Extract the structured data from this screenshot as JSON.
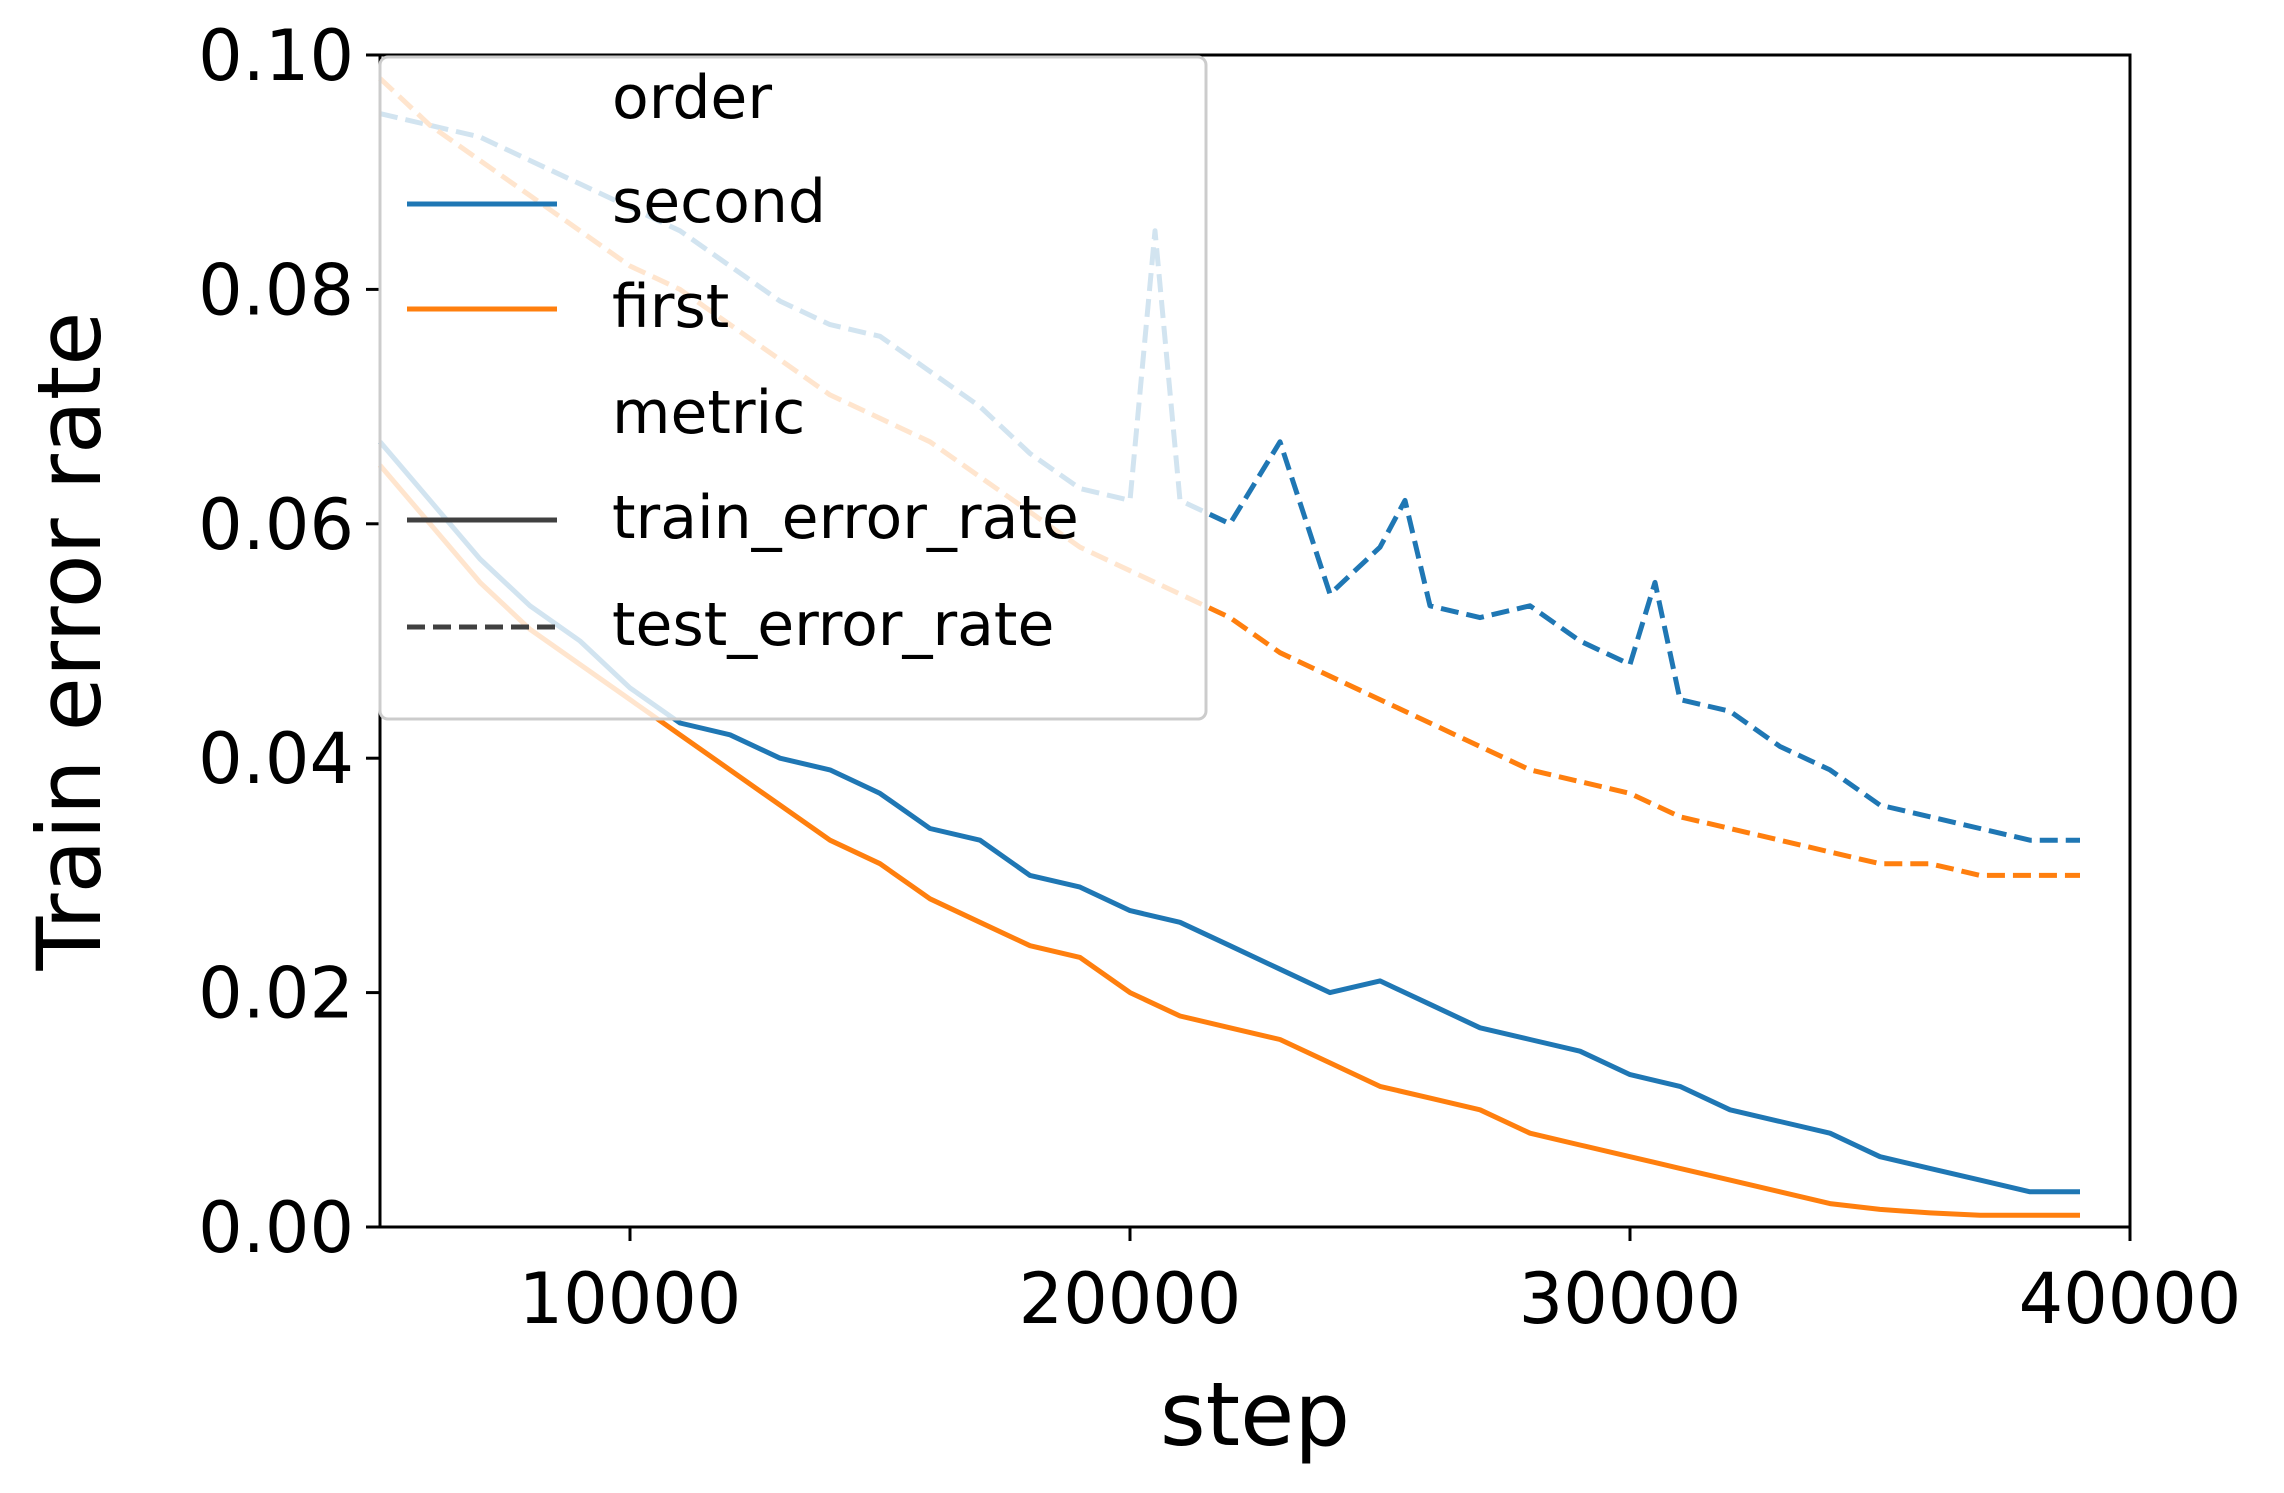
{
  "chart_data": {
    "type": "line",
    "title": "",
    "xlabel": "step",
    "ylabel": "Train error rate",
    "xlim": [
      5000,
      40000
    ],
    "ylim": [
      0.0,
      0.1
    ],
    "xticks": [
      "10000",
      "20000",
      "30000",
      "40000"
    ],
    "yticks": [
      "0.00",
      "0.02",
      "0.04",
      "0.06",
      "0.08",
      "0.10"
    ],
    "grid": false,
    "legend": {
      "placement": "upper-left",
      "entries": [
        {
          "label": "order",
          "kind": "header"
        },
        {
          "label": "second",
          "kind": "color",
          "color": "#1f77b4"
        },
        {
          "label": "first",
          "kind": "color",
          "color": "#ff7f0e"
        },
        {
          "label": "metric",
          "kind": "header"
        },
        {
          "label": "train_error_rate",
          "kind": "solid",
          "color": "#404040"
        },
        {
          "label": "test_error_rate",
          "kind": "dashed",
          "color": "#404040"
        }
      ]
    },
    "series": [
      {
        "name": "second",
        "metric": "train_error_rate",
        "color": "#1f77b4",
        "dash": false,
        "x": [
          5000,
          6000,
          7000,
          8000,
          9000,
          10000,
          11000,
          12000,
          13000,
          14000,
          15000,
          16000,
          17000,
          18000,
          19000,
          20000,
          21000,
          22000,
          23000,
          24000,
          25000,
          26000,
          27000,
          28000,
          29000,
          30000,
          31000,
          32000,
          33000,
          34000,
          35000,
          36000,
          37000,
          38000,
          39000
        ],
        "y": [
          0.067,
          0.062,
          0.057,
          0.053,
          0.05,
          0.046,
          0.043,
          0.042,
          0.04,
          0.039,
          0.037,
          0.034,
          0.033,
          0.03,
          0.029,
          0.027,
          0.026,
          0.024,
          0.022,
          0.02,
          0.021,
          0.019,
          0.017,
          0.016,
          0.015,
          0.013,
          0.012,
          0.01,
          0.009,
          0.008,
          0.006,
          0.005,
          0.004,
          0.003,
          0.003
        ]
      },
      {
        "name": "first",
        "metric": "train_error_rate",
        "color": "#ff7f0e",
        "dash": false,
        "x": [
          5000,
          6000,
          7000,
          8000,
          9000,
          10000,
          11000,
          12000,
          13000,
          14000,
          15000,
          16000,
          17000,
          18000,
          19000,
          20000,
          21000,
          22000,
          23000,
          24000,
          25000,
          26000,
          27000,
          28000,
          29000,
          30000,
          31000,
          32000,
          33000,
          34000,
          35000,
          36000,
          37000,
          38000,
          39000
        ],
        "y": [
          0.065,
          0.06,
          0.055,
          0.051,
          0.048,
          0.045,
          0.042,
          0.039,
          0.036,
          0.033,
          0.031,
          0.028,
          0.026,
          0.024,
          0.023,
          0.02,
          0.018,
          0.017,
          0.016,
          0.014,
          0.012,
          0.011,
          0.01,
          0.008,
          0.007,
          0.006,
          0.005,
          0.004,
          0.003,
          0.002,
          0.0015,
          0.0012,
          0.001,
          0.001,
          0.001
        ]
      },
      {
        "name": "second",
        "metric": "test_error_rate",
        "color": "#1f77b4",
        "dash": true,
        "x": [
          5000,
          6000,
          7000,
          8000,
          9000,
          10000,
          11000,
          12000,
          13000,
          14000,
          15000,
          16000,
          17000,
          18000,
          19000,
          20000,
          20500,
          21000,
          22000,
          23000,
          24000,
          25000,
          25500,
          26000,
          27000,
          28000,
          29000,
          30000,
          30500,
          31000,
          32000,
          33000,
          34000,
          35000,
          36000,
          37000,
          38000,
          39000
        ],
        "y": [
          0.095,
          0.094,
          0.093,
          0.091,
          0.089,
          0.087,
          0.085,
          0.082,
          0.079,
          0.077,
          0.076,
          0.073,
          0.07,
          0.066,
          0.063,
          0.062,
          0.085,
          0.062,
          0.06,
          0.067,
          0.054,
          0.058,
          0.062,
          0.053,
          0.052,
          0.053,
          0.05,
          0.048,
          0.055,
          0.045,
          0.044,
          0.041,
          0.039,
          0.036,
          0.035,
          0.034,
          0.033,
          0.033
        ]
      },
      {
        "name": "first",
        "metric": "test_error_rate",
        "color": "#ff7f0e",
        "dash": true,
        "x": [
          5000,
          6000,
          7000,
          8000,
          9000,
          10000,
          11000,
          12000,
          13000,
          14000,
          15000,
          16000,
          17000,
          18000,
          19000,
          20000,
          21000,
          22000,
          23000,
          24000,
          25000,
          26000,
          27000,
          28000,
          29000,
          30000,
          31000,
          32000,
          33000,
          34000,
          35000,
          36000,
          37000,
          38000,
          39000
        ],
        "y": [
          0.098,
          0.094,
          0.091,
          0.088,
          0.085,
          0.082,
          0.08,
          0.077,
          0.074,
          0.071,
          0.069,
          0.067,
          0.064,
          0.061,
          0.058,
          0.056,
          0.054,
          0.052,
          0.049,
          0.047,
          0.045,
          0.043,
          0.041,
          0.039,
          0.038,
          0.037,
          0.035,
          0.034,
          0.033,
          0.032,
          0.031,
          0.031,
          0.03,
          0.03,
          0.03
        ]
      }
    ]
  }
}
